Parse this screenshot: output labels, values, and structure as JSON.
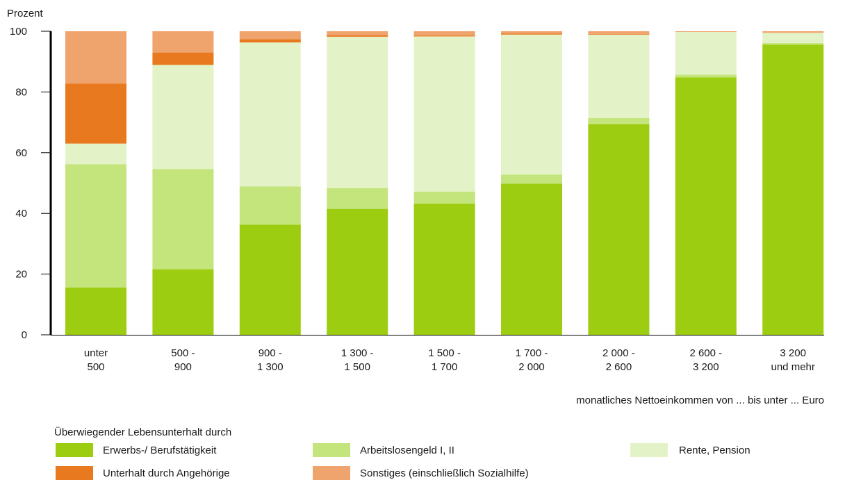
{
  "chart_data": {
    "type": "bar",
    "stacked": true,
    "ylabel": "Prozent",
    "xlabel": "monatliches Nettoeinkommen von ... bis unter ... Euro",
    "ylim": [
      0,
      100
    ],
    "yticks": [
      0,
      20,
      40,
      60,
      80,
      100
    ],
    "grid": false,
    "legend_title": "Überwiegender Lebensunterhalt durch",
    "legend_position": "bottom",
    "categories": [
      [
        "unter",
        "500"
      ],
      [
        "500 -",
        "900"
      ],
      [
        "900 -",
        "1 300"
      ],
      [
        "1 300 -",
        "1 500"
      ],
      [
        "1 500 -",
        "1 700"
      ],
      [
        "1 700 -",
        "2 000"
      ],
      [
        "2 000 -",
        "2 600"
      ],
      [
        "2 600 -",
        "3 200"
      ],
      [
        "3 200",
        "und mehr"
      ]
    ],
    "series": [
      {
        "name": "Erwerbs-/ Berufstätigkeit",
        "color": "#9ccd10",
        "values": [
          15.6,
          21.6,
          36.3,
          41.5,
          43.2,
          49.8,
          69.4,
          84.8,
          95.6
        ]
      },
      {
        "name": "Arbeitslosengeld I, II",
        "color": "#c4e47c",
        "values": [
          40.6,
          33.0,
          12.6,
          6.8,
          4.0,
          3.0,
          2.0,
          0.9,
          0.5
        ]
      },
      {
        "name": "Rente, Pension",
        "color": "#e3f3c7",
        "values": [
          6.8,
          34.3,
          47.4,
          49.9,
          51.1,
          46.1,
          27.5,
          14.1,
          3.4
        ]
      },
      {
        "name": "Unterhalt durch Angehörige",
        "color": "#e8791e",
        "values": [
          19.8,
          4.1,
          1.1,
          0.5,
          0.3,
          0.3,
          0.2,
          0.1,
          0.1
        ]
      },
      {
        "name": "Sonstiges (einschließlich Sozialhilfe)",
        "color": "#efa36d",
        "values": [
          17.2,
          7.0,
          2.6,
          1.3,
          1.4,
          0.8,
          0.9,
          0.1,
          0.4
        ]
      }
    ]
  }
}
